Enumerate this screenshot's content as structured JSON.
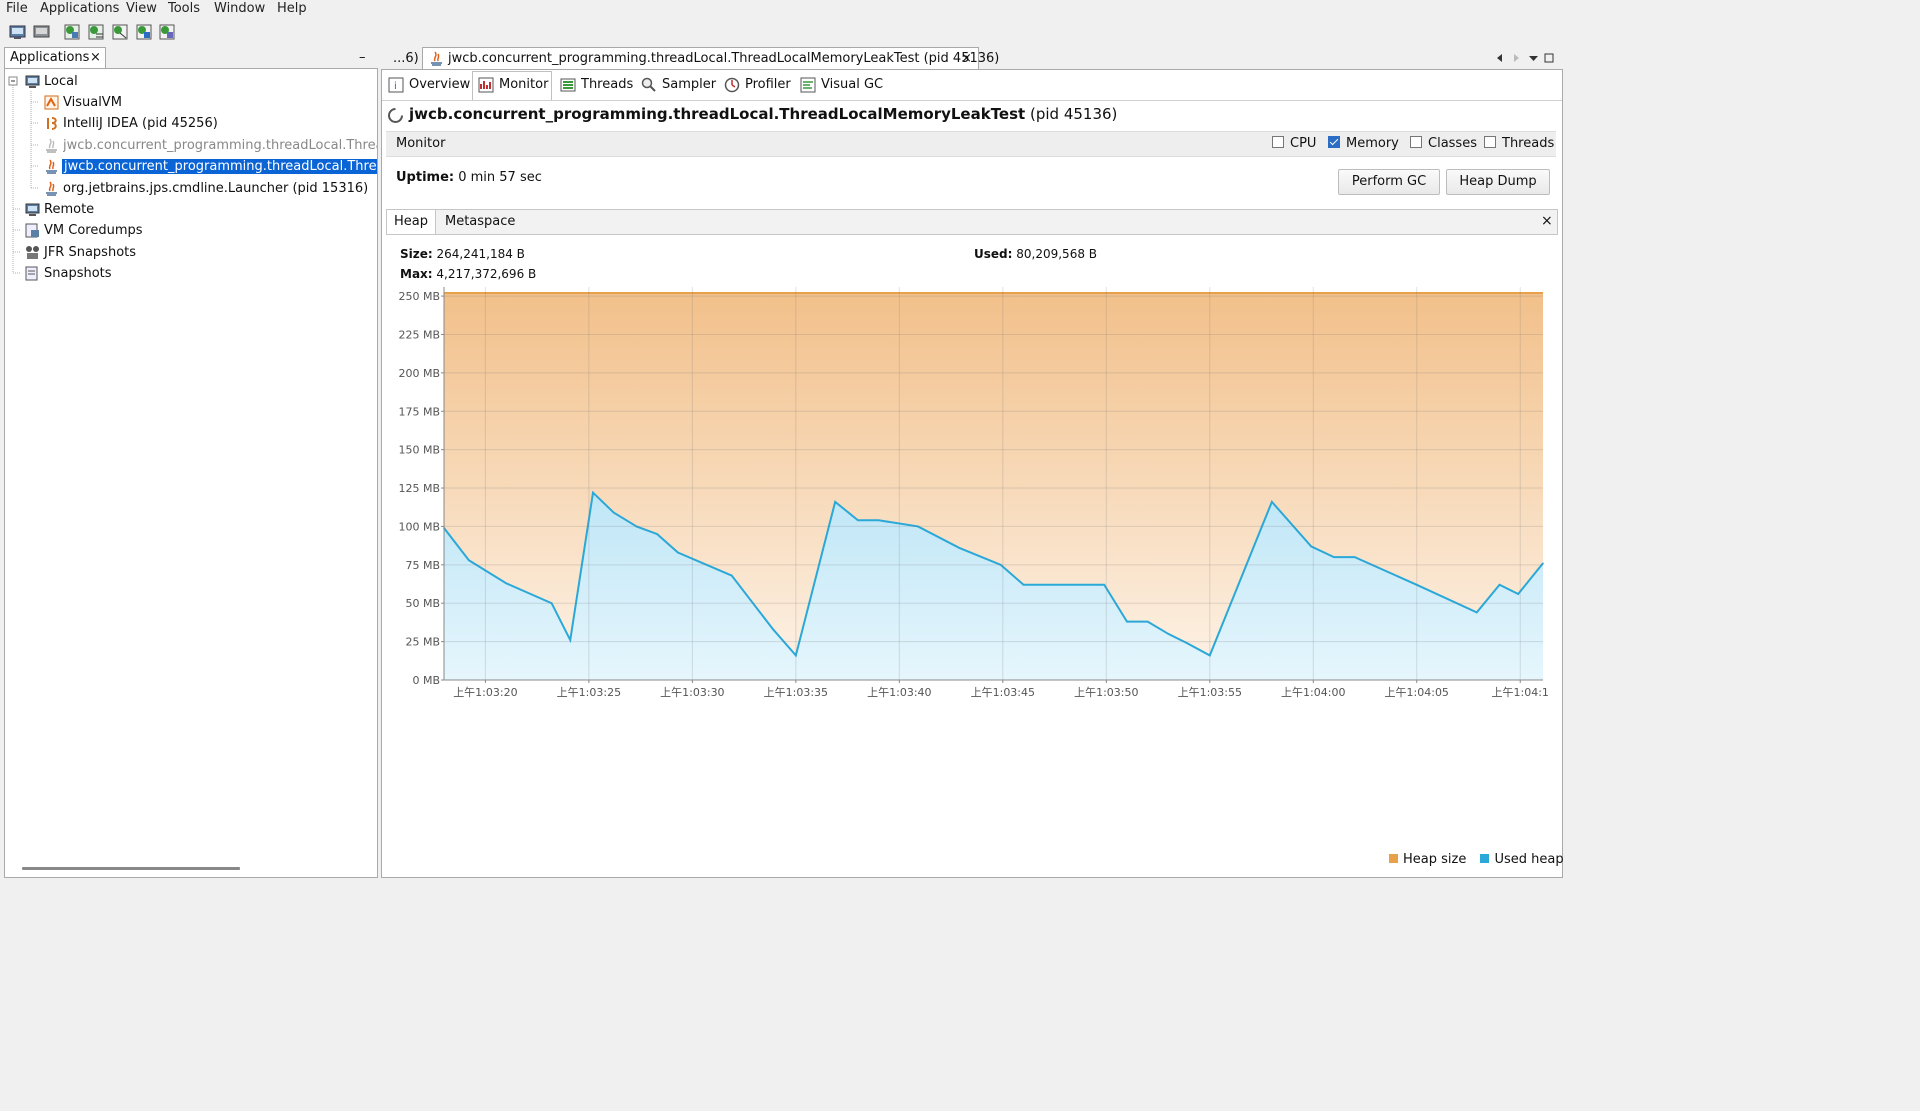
{
  "menu": [
    "File",
    "Applications",
    "View",
    "Tools",
    "Window",
    "Help"
  ],
  "toolbar_icons": [
    "add-jmx-icon",
    "remote-host-icon",
    "heap-dump-icon",
    "thread-dump-icon",
    "snapshot-icon",
    "coredump-icon",
    "jfr-icon"
  ],
  "left": {
    "tab_label": "Applications",
    "close": "×",
    "minimize": "–",
    "tree": [
      {
        "label": "Local",
        "level": 0,
        "icon": "computer-icon"
      },
      {
        "label": "VisualVM",
        "level": 1,
        "icon": "visualvm-icon"
      },
      {
        "label": "IntelliJ IDEA (pid 45256)",
        "level": 1,
        "icon": "intellij-icon"
      },
      {
        "label": "jwcb.concurrent_programming.threadLocal.ThreadLo",
        "level": 1,
        "icon": "java-icon",
        "state": "greyed"
      },
      {
        "label": "jwcb.concurrent_programming.threadLocal.ThreadLo",
        "level": 1,
        "icon": "java-icon",
        "state": "selected"
      },
      {
        "label": "org.jetbrains.jps.cmdline.Launcher (pid 15316)",
        "level": 1,
        "icon": "java-icon"
      },
      {
        "label": "Remote",
        "level": 0,
        "icon": "remote-icon"
      },
      {
        "label": "VM Coredumps",
        "level": 0,
        "icon": "coredump-icon"
      },
      {
        "label": "JFR Snapshots",
        "level": 0,
        "icon": "jfr-icon"
      },
      {
        "label": "Snapshots",
        "level": 0,
        "icon": "snapshot-icon"
      }
    ]
  },
  "doc": {
    "overflow_tab": "...6)",
    "active_tab": "jwcb.concurrent_programming.threadLocal.ThreadLocalMemoryLeakTest (pid 45136)",
    "close": "×"
  },
  "subtabs": [
    {
      "label": "Overview",
      "icon": "overview-icon"
    },
    {
      "label": "Monitor",
      "icon": "monitor-icon",
      "active": true
    },
    {
      "label": "Threads",
      "icon": "threads-icon"
    },
    {
      "label": "Sampler",
      "icon": "sampler-icon"
    },
    {
      "label": "Profiler",
      "icon": "profiler-icon"
    },
    {
      "label": "Visual GC",
      "icon": "visualgc-icon"
    }
  ],
  "app_title": "jwcb.concurrent_programming.threadLocal.ThreadLocalMemoryLeakTest",
  "app_pid": "(pid 45136)",
  "monitor": {
    "label": "Monitor",
    "checkboxes": [
      {
        "label": "CPU",
        "checked": false
      },
      {
        "label": "Memory",
        "checked": true
      },
      {
        "label": "Classes",
        "checked": false
      },
      {
        "label": "Threads",
        "checked": false
      }
    ],
    "uptime_label": "Uptime:",
    "uptime_value": "0 min 57 sec",
    "perform_gc": "Perform GC",
    "heap_dump": "Heap Dump"
  },
  "heap_tabs": [
    "Heap",
    "Metaspace"
  ],
  "heap_close": "×",
  "stats": {
    "size_label": "Size:",
    "size_value": "264,241,184 B",
    "max_label": "Max:",
    "max_value": "4,217,372,696 B",
    "used_label": "Used:",
    "used_value": "80,209,568 B"
  },
  "colors": {
    "heap_size": "#e8a04a",
    "used_heap": "#2aa8d8",
    "selection": "#0a64d6"
  },
  "chart_data": {
    "type": "area",
    "ylim": [
      0,
      252
    ],
    "yticks": [
      0,
      25,
      50,
      75,
      100,
      125,
      150,
      175,
      200,
      225,
      250
    ],
    "ytick_labels": [
      "0 MB",
      "25 MB",
      "50 MB",
      "75 MB",
      "100 MB",
      "125 MB",
      "150 MB",
      "175 MB",
      "200 MB",
      "225 MB",
      "250 MB"
    ],
    "xlim": [
      18,
      71.1
    ],
    "xticks": [
      20,
      25,
      30,
      35,
      40,
      45,
      50,
      55,
      60,
      65,
      70
    ],
    "xtick_labels": [
      "上午1:03:20",
      "上午1:03:25",
      "上午1:03:30",
      "上午1:03:35",
      "上午1:03:40",
      "上午1:03:45",
      "上午1:03:50",
      "上午1:03:55",
      "上午1:04:00",
      "上午1:04:05",
      "上午1:04:1"
    ],
    "series": [
      {
        "name": "Heap size",
        "x": [
          18,
          71.1
        ],
        "values": [
          252,
          252
        ]
      },
      {
        "name": "Used heap",
        "x": [
          18,
          19.2,
          21,
          23.2,
          24.1,
          25.2,
          26.2,
          27.3,
          28.3,
          29.3,
          31.9,
          33.9,
          35.0,
          36.9,
          38.0,
          39.0,
          40.9,
          42.9,
          44.9,
          46.0,
          49.9,
          51.0,
          52.0,
          53.0,
          53.9,
          55.0,
          58.0,
          59.9,
          61.0,
          62.0,
          65.0,
          67.9,
          69.0,
          69.9,
          71.1
        ],
        "values": [
          99,
          78,
          63,
          50,
          26,
          122,
          109,
          100,
          95,
          83,
          68,
          33,
          16,
          116,
          104,
          104,
          100,
          86,
          75,
          62,
          62,
          38,
          38,
          30,
          24,
          16,
          116,
          87,
          80,
          80,
          62,
          44,
          62,
          56,
          76
        ]
      }
    ],
    "legend": "bottom-right"
  }
}
